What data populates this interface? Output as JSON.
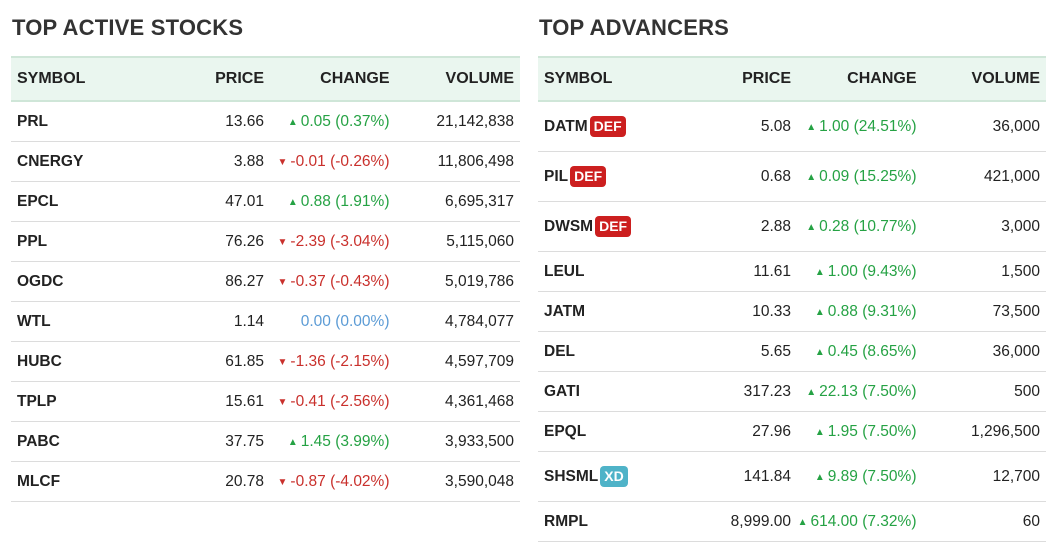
{
  "colors": {
    "up": "#25a244",
    "down": "#c9302c",
    "flat": "#5b9bd5",
    "badge_def": "#cc1f1f",
    "badge_xd": "#4fb3c8",
    "header_bg": "#eaf6ef"
  },
  "icons": {
    "up": "triangle-up-icon",
    "down": "triangle-down-icon"
  },
  "left": {
    "title": "TOP ACTIVE STOCKS",
    "headers": {
      "symbol": "SYMBOL",
      "price": "PRICE",
      "change": "CHANGE",
      "volume": "VOLUME"
    },
    "rows": [
      {
        "symbol": "PRL",
        "price": "13.66",
        "change": "0.05",
        "pct": "(0.37%)",
        "dir": "up",
        "volume": "21,142,838"
      },
      {
        "symbol": "CNERGY",
        "price": "3.88",
        "change": "-0.01",
        "pct": "(-0.26%)",
        "dir": "down",
        "volume": "11,806,498"
      },
      {
        "symbol": "EPCL",
        "price": "47.01",
        "change": "0.88",
        "pct": "(1.91%)",
        "dir": "up",
        "volume": "6,695,317"
      },
      {
        "symbol": "PPL",
        "price": "76.26",
        "change": "-2.39",
        "pct": "(-3.04%)",
        "dir": "down",
        "volume": "5,115,060"
      },
      {
        "symbol": "OGDC",
        "price": "86.27",
        "change": "-0.37",
        "pct": "(-0.43%)",
        "dir": "down",
        "volume": "5,019,786"
      },
      {
        "symbol": "WTL",
        "price": "1.14",
        "change": "0.00",
        "pct": "(0.00%)",
        "dir": "flat",
        "volume": "4,784,077"
      },
      {
        "symbol": "HUBC",
        "price": "61.85",
        "change": "-1.36",
        "pct": "(-2.15%)",
        "dir": "down",
        "volume": "4,597,709"
      },
      {
        "symbol": "TPLP",
        "price": "15.61",
        "change": "-0.41",
        "pct": "(-2.56%)",
        "dir": "down",
        "volume": "4,361,468"
      },
      {
        "symbol": "PABC",
        "price": "37.75",
        "change": "1.45",
        "pct": "(3.99%)",
        "dir": "up",
        "volume": "3,933,500"
      },
      {
        "symbol": "MLCF",
        "price": "20.78",
        "change": "-0.87",
        "pct": "(-4.02%)",
        "dir": "down",
        "volume": "3,590,048"
      }
    ]
  },
  "right": {
    "title": "TOP ADVANCERS",
    "headers": {
      "symbol": "SYMBOL",
      "price": "PRICE",
      "change": "CHANGE",
      "volume": "VOLUME"
    },
    "rows": [
      {
        "symbol": "DATM",
        "badge": "DEF",
        "price": "5.08",
        "change": "1.00",
        "pct": "(24.51%)",
        "dir": "up",
        "volume": "36,000"
      },
      {
        "symbol": "PIL",
        "badge": "DEF",
        "price": "0.68",
        "change": "0.09",
        "pct": "(15.25%)",
        "dir": "up",
        "volume": "421,000"
      },
      {
        "symbol": "DWSM",
        "badge": "DEF",
        "price": "2.88",
        "change": "0.28",
        "pct": "(10.77%)",
        "dir": "up",
        "volume": "3,000"
      },
      {
        "symbol": "LEUL",
        "price": "11.61",
        "change": "1.00",
        "pct": "(9.43%)",
        "dir": "up",
        "volume": "1,500"
      },
      {
        "symbol": "JATM",
        "price": "10.33",
        "change": "0.88",
        "pct": "(9.31%)",
        "dir": "up",
        "volume": "73,500"
      },
      {
        "symbol": "DEL",
        "price": "5.65",
        "change": "0.45",
        "pct": "(8.65%)",
        "dir": "up",
        "volume": "36,000"
      },
      {
        "symbol": "GATI",
        "price": "317.23",
        "change": "22.13",
        "pct": "(7.50%)",
        "dir": "up",
        "volume": "500"
      },
      {
        "symbol": "EPQL",
        "price": "27.96",
        "change": "1.95",
        "pct": "(7.50%)",
        "dir": "up",
        "volume": "1,296,500"
      },
      {
        "symbol": "SHSML",
        "badge": "XD",
        "price": "141.84",
        "change": "9.89",
        "pct": "(7.50%)",
        "dir": "up",
        "volume": "12,700"
      },
      {
        "symbol": "RMPL",
        "price": "8,999.00",
        "change": "614.00",
        "pct": "(7.32%)",
        "dir": "up",
        "volume": "60"
      }
    ]
  }
}
